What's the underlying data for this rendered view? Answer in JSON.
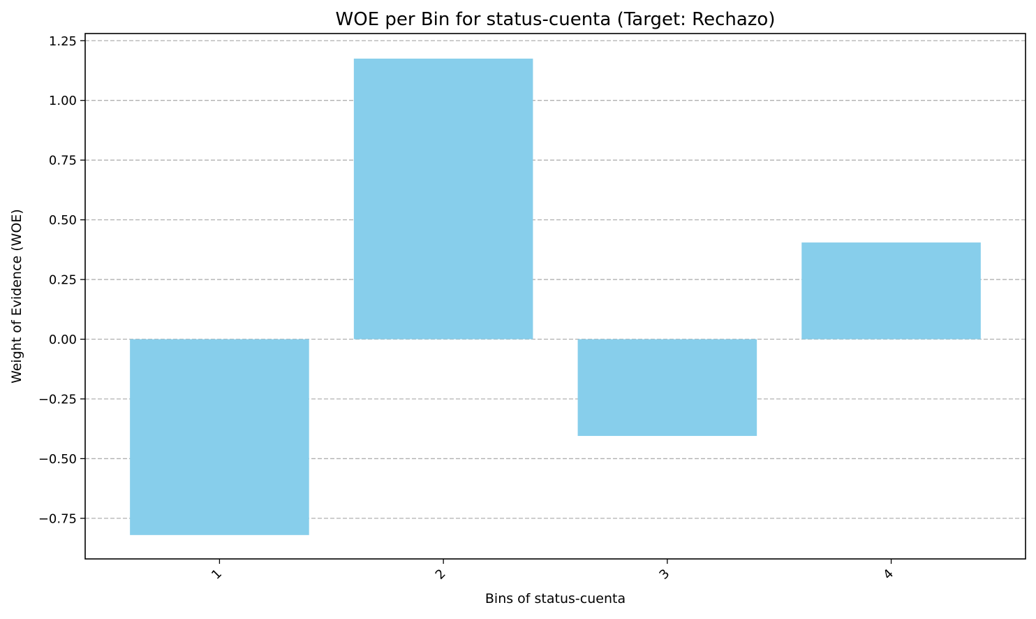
{
  "chart_data": {
    "type": "bar",
    "title": "WOE per Bin for status-cuenta (Target: Rechazo)",
    "xlabel": "Bins of status-cuenta",
    "ylabel": "Weight of Evidence (WOE)",
    "categories": [
      "1",
      "2",
      "3",
      "4"
    ],
    "values": [
      -0.82,
      1.175,
      -0.405,
      0.405
    ],
    "ylim": [
      -0.92,
      1.28
    ],
    "yticks": [
      -0.75,
      -0.5,
      -0.25,
      0.0,
      0.25,
      0.5,
      0.75,
      1.0,
      1.25
    ],
    "ytick_labels": [
      "−0.75",
      "−0.50",
      "−0.25",
      "0.00",
      "0.25",
      "0.50",
      "0.75",
      "1.00",
      "1.25"
    ],
    "grid": "y-dashed",
    "legend": "none",
    "xtick_rotation": -45
  },
  "colors": {
    "bar": "#87ceeb",
    "grid": "#b0b0b0",
    "axis": "#000000"
  }
}
